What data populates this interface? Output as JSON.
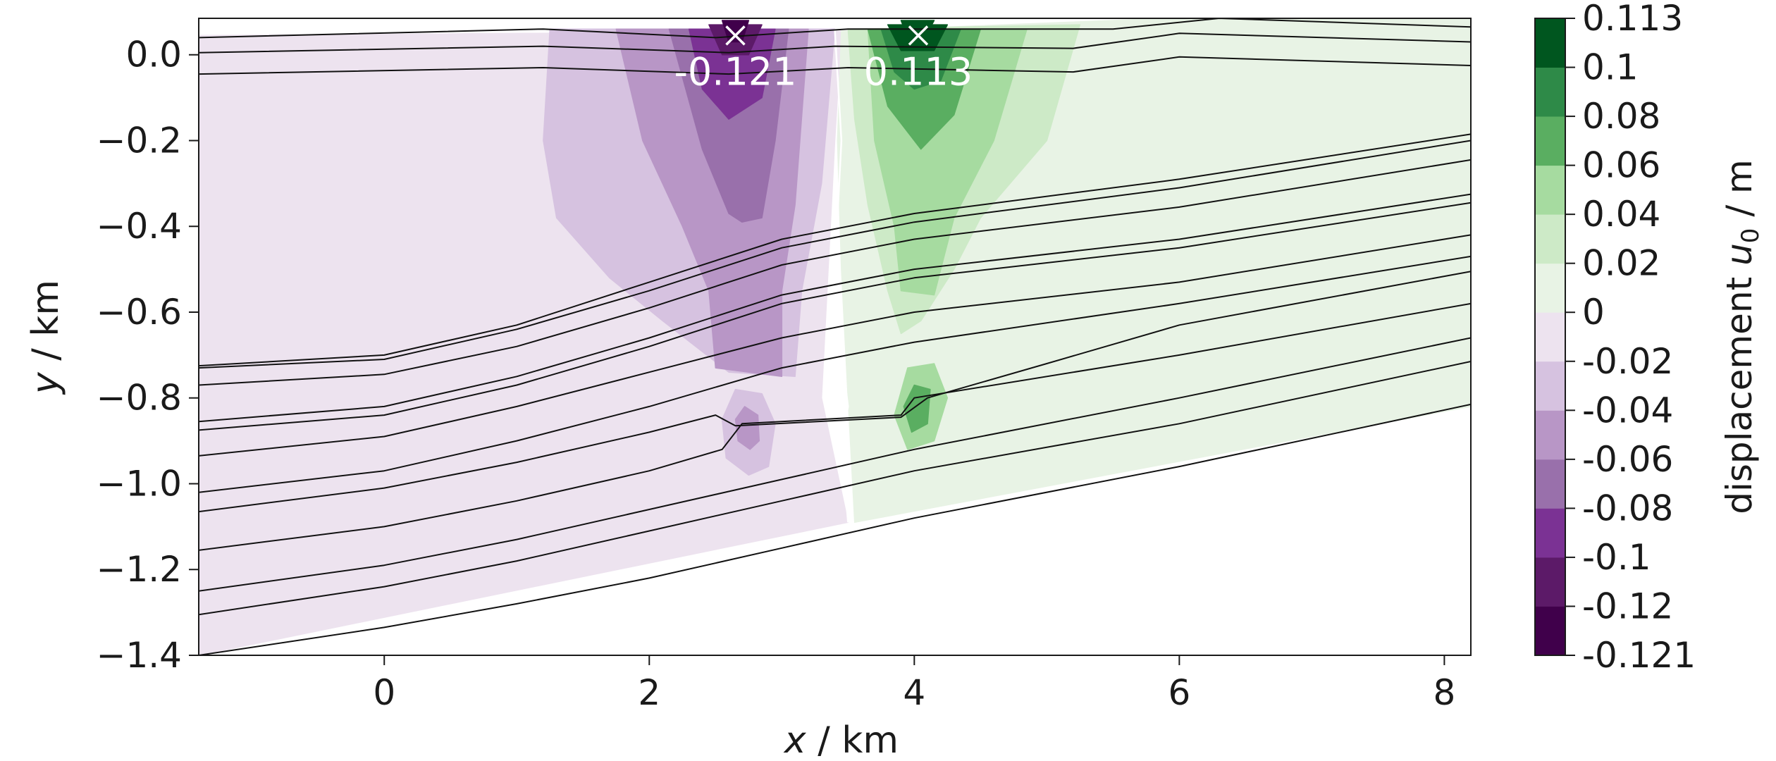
{
  "chart_data": {
    "type": "contourf",
    "xlabel_var": "x",
    "xlabel_unit": " / km",
    "ylabel_var": "y",
    "ylabel_unit": " / km",
    "xlim": [
      -1.4,
      8.2
    ],
    "ylim": [
      -1.4,
      0.085
    ],
    "x_ticks": [
      0,
      2,
      4,
      6,
      8
    ],
    "x_tick_labels": [
      "0",
      "2",
      "4",
      "6",
      "8"
    ],
    "y_ticks": [
      0.0,
      -0.2,
      -0.4,
      -0.6,
      -0.8,
      -1.0,
      -1.2,
      -1.4
    ],
    "y_tick_labels": [
      "0.0",
      "−0.2",
      "−0.4",
      "−0.6",
      "−0.8",
      "−1.0",
      "−1.2",
      "−1.4"
    ],
    "colorbar": {
      "label_prefix": "displacement ",
      "label_var": "u",
      "label_sub": "0",
      "label_suffix": " / m",
      "levels": [
        -0.121,
        -0.12,
        -0.1,
        -0.08,
        -0.06,
        -0.04,
        -0.02,
        0,
        0.02,
        0.04,
        0.06,
        0.08,
        0.1,
        0.113
      ],
      "tick_labels": [
        "-0.121",
        "-0.12",
        "-0.1",
        "-0.08",
        "-0.06",
        "-0.04",
        "-0.02",
        "0",
        "0.02",
        "0.04",
        "0.06",
        "0.08",
        "0.1",
        "0.113"
      ],
      "colors": [
        "#40004b",
        "#5c1a68",
        "#7b3294",
        "#9970ab",
        "#b896c6",
        "#d6c2e0",
        "#ede3ef",
        "#e8f3e5",
        "#cdeac7",
        "#a6dba0",
        "#5aae61",
        "#2e8a48",
        "#00561f"
      ]
    },
    "extrema": [
      {
        "x": 2.65,
        "y": 0.045,
        "value": -0.121,
        "label": "-0.121"
      },
      {
        "x": 4.03,
        "y": 0.045,
        "value": 0.113,
        "label": "0.113"
      }
    ],
    "regions": [
      {
        "level": -0.02,
        "polygon": [
          [
            -1.4,
            0.045
          ],
          [
            3.45,
            0.055
          ],
          [
            3.4,
            -0.2
          ],
          [
            3.35,
            -0.5
          ],
          [
            3.3,
            -0.8
          ],
          [
            3.5,
            -1.09
          ],
          [
            -1.4,
            -1.4
          ]
        ]
      },
      {
        "level": 0.0,
        "polygon": [
          [
            3.45,
            0.055
          ],
          [
            5.9,
            0.085
          ],
          [
            8.2,
            0.085
          ],
          [
            8.2,
            -0.82
          ],
          [
            3.55,
            -1.09
          ],
          [
            3.5,
            -0.8
          ],
          [
            3.45,
            -0.5
          ],
          [
            3.42,
            -0.2
          ]
        ]
      },
      {
        "level": -0.04,
        "polygon": [
          [
            1.25,
            0.06
          ],
          [
            3.4,
            0.06
          ],
          [
            3.3,
            -0.3
          ],
          [
            3.15,
            -0.55
          ],
          [
            3.1,
            -0.75
          ],
          [
            2.6,
            -0.74
          ],
          [
            2.1,
            -0.62
          ],
          [
            1.7,
            -0.52
          ],
          [
            1.3,
            -0.38
          ],
          [
            1.2,
            -0.2
          ]
        ]
      },
      {
        "level": -0.06,
        "polygon": [
          [
            1.75,
            0.06
          ],
          [
            3.2,
            0.06
          ],
          [
            3.1,
            -0.35
          ],
          [
            3.0,
            -0.55
          ],
          [
            3.0,
            -0.75
          ],
          [
            2.5,
            -0.73
          ],
          [
            2.45,
            -0.55
          ],
          [
            2.25,
            -0.4
          ],
          [
            1.95,
            -0.2
          ]
        ]
      },
      {
        "level": -0.08,
        "polygon": [
          [
            2.15,
            0.06
          ],
          [
            3.05,
            0.06
          ],
          [
            2.95,
            -0.2
          ],
          [
            2.85,
            -0.38
          ],
          [
            2.7,
            -0.39
          ],
          [
            2.6,
            -0.37
          ],
          [
            2.4,
            -0.22
          ]
        ]
      },
      {
        "level": -0.1,
        "polygon": [
          [
            2.3,
            0.06
          ],
          [
            2.95,
            0.06
          ],
          [
            2.85,
            -0.1
          ],
          [
            2.6,
            -0.15
          ],
          [
            2.4,
            -0.08
          ]
        ]
      },
      {
        "level": -0.12,
        "polygon": [
          [
            2.45,
            0.07
          ],
          [
            2.85,
            0.07
          ],
          [
            2.75,
            0.0
          ],
          [
            2.55,
            0.0
          ]
        ]
      },
      {
        "level": -0.121,
        "polygon": [
          [
            2.55,
            0.08
          ],
          [
            2.75,
            0.08
          ],
          [
            2.7,
            0.03
          ],
          [
            2.6,
            0.03
          ]
        ]
      },
      {
        "level": -0.04,
        "polygon": [
          [
            2.55,
            -0.85
          ],
          [
            2.65,
            -0.78
          ],
          [
            2.85,
            -0.79
          ],
          [
            2.95,
            -0.86
          ],
          [
            2.9,
            -0.96
          ],
          [
            2.75,
            -0.98
          ],
          [
            2.58,
            -0.94
          ]
        ]
      },
      {
        "level": -0.06,
        "polygon": [
          [
            2.65,
            -0.85
          ],
          [
            2.72,
            -0.82
          ],
          [
            2.82,
            -0.84
          ],
          [
            2.83,
            -0.9
          ],
          [
            2.76,
            -0.92
          ],
          [
            2.67,
            -0.9
          ]
        ]
      },
      {
        "level": 0.02,
        "polygon": [
          [
            3.5,
            0.06
          ],
          [
            5.25,
            0.07
          ],
          [
            5.0,
            -0.2
          ],
          [
            4.5,
            -0.38
          ],
          [
            4.3,
            -0.5
          ],
          [
            4.05,
            -0.62
          ],
          [
            3.9,
            -0.65
          ],
          [
            3.8,
            -0.55
          ],
          [
            3.65,
            -0.35
          ],
          [
            3.55,
            -0.15
          ]
        ]
      },
      {
        "level": 0.04,
        "polygon": [
          [
            3.65,
            0.06
          ],
          [
            4.85,
            0.06
          ],
          [
            4.6,
            -0.2
          ],
          [
            4.3,
            -0.38
          ],
          [
            4.15,
            -0.56
          ],
          [
            3.9,
            -0.55
          ],
          [
            3.85,
            -0.4
          ],
          [
            3.7,
            -0.2
          ]
        ]
      },
      {
        "level": 0.06,
        "polygon": [
          [
            3.65,
            0.06
          ],
          [
            4.5,
            0.06
          ],
          [
            4.3,
            -0.14
          ],
          [
            4.05,
            -0.22
          ],
          [
            3.8,
            -0.12
          ]
        ]
      },
      {
        "level": 0.08,
        "polygon": [
          [
            3.75,
            0.06
          ],
          [
            4.35,
            0.06
          ],
          [
            4.2,
            -0.06
          ],
          [
            4.0,
            -0.08
          ],
          [
            3.85,
            -0.04
          ]
        ]
      },
      {
        "level": 0.1,
        "polygon": [
          [
            3.8,
            0.07
          ],
          [
            4.25,
            0.07
          ],
          [
            4.15,
            0.01
          ],
          [
            3.9,
            0.01
          ]
        ]
      },
      {
        "level": 0.113,
        "polygon": [
          [
            3.9,
            0.08
          ],
          [
            4.15,
            0.08
          ],
          [
            4.08,
            0.04
          ],
          [
            3.95,
            0.04
          ]
        ]
      },
      {
        "level": 0.04,
        "polygon": [
          [
            3.85,
            -0.84
          ],
          [
            3.95,
            -0.73
          ],
          [
            4.15,
            -0.72
          ],
          [
            4.25,
            -0.8
          ],
          [
            4.15,
            -0.9
          ],
          [
            3.95,
            -0.92
          ]
        ]
      },
      {
        "level": 0.06,
        "polygon": [
          [
            3.92,
            -0.82
          ],
          [
            4.0,
            -0.77
          ],
          [
            4.12,
            -0.78
          ],
          [
            4.1,
            -0.86
          ],
          [
            3.98,
            -0.88
          ]
        ]
      }
    ],
    "zero_contour": [
      [
        3.4,
        0.06
      ],
      [
        3.45,
        -0.2
      ],
      [
        3.4,
        -0.5
      ],
      [
        3.45,
        -0.7
      ],
      [
        3.5,
        -0.82
      ],
      [
        3.45,
        -0.9
      ],
      [
        3.5,
        -1.09
      ]
    ],
    "layer_lines": [
      [
        [
          -1.4,
          0.04
        ],
        [
          1.2,
          0.06
        ],
        [
          2.5,
          0.04
        ],
        [
          3.5,
          0.06
        ],
        [
          5.5,
          0.06
        ],
        [
          6.3,
          0.085
        ],
        [
          8.2,
          0.065
        ]
      ],
      [
        [
          -1.4,
          0.005
        ],
        [
          1.2,
          0.02
        ],
        [
          2.6,
          0.005
        ],
        [
          3.4,
          0.02
        ],
        [
          5.2,
          0.015
        ],
        [
          6.0,
          0.05
        ],
        [
          8.2,
          0.03
        ]
      ],
      [
        [
          -1.4,
          -0.045
        ],
        [
          1.2,
          -0.03
        ],
        [
          2.6,
          -0.045
        ],
        [
          3.5,
          -0.03
        ],
        [
          5.2,
          -0.04
        ],
        [
          6.0,
          -0.005
        ],
        [
          8.2,
          -0.025
        ]
      ],
      [
        [
          -1.4,
          -0.725
        ],
        [
          0.0,
          -0.7
        ],
        [
          1.0,
          -0.63
        ],
        [
          2.0,
          -0.53
        ],
        [
          3.0,
          -0.43
        ],
        [
          4.0,
          -0.37
        ],
        [
          6.0,
          -0.29
        ],
        [
          8.2,
          -0.185
        ]
      ],
      [
        [
          -1.4,
          -0.73
        ],
        [
          0.0,
          -0.71
        ],
        [
          1.0,
          -0.64
        ],
        [
          2.0,
          -0.55
        ],
        [
          3.0,
          -0.45
        ],
        [
          4.0,
          -0.39
        ],
        [
          6.0,
          -0.31
        ],
        [
          8.2,
          -0.2
        ]
      ],
      [
        [
          -1.4,
          -0.77
        ],
        [
          0.0,
          -0.745
        ],
        [
          1.0,
          -0.68
        ],
        [
          2.0,
          -0.59
        ],
        [
          3.0,
          -0.49
        ],
        [
          4.0,
          -0.43
        ],
        [
          6.0,
          -0.355
        ],
        [
          8.2,
          -0.245
        ]
      ],
      [
        [
          -1.4,
          -0.855
        ],
        [
          0.0,
          -0.82
        ],
        [
          1.0,
          -0.75
        ],
        [
          2.0,
          -0.66
        ],
        [
          3.0,
          -0.56
        ],
        [
          4.0,
          -0.5
        ],
        [
          6.0,
          -0.43
        ],
        [
          8.2,
          -0.325
        ]
      ],
      [
        [
          -1.4,
          -0.875
        ],
        [
          0.0,
          -0.84
        ],
        [
          1.0,
          -0.77
        ],
        [
          2.0,
          -0.68
        ],
        [
          3.0,
          -0.58
        ],
        [
          4.0,
          -0.52
        ],
        [
          6.0,
          -0.45
        ],
        [
          8.2,
          -0.345
        ]
      ],
      [
        [
          -1.4,
          -0.935
        ],
        [
          0.0,
          -0.89
        ],
        [
          1.0,
          -0.82
        ],
        [
          2.0,
          -0.74
        ],
        [
          3.0,
          -0.66
        ],
        [
          4.0,
          -0.6
        ],
        [
          6.0,
          -0.53
        ],
        [
          8.2,
          -0.42
        ]
      ],
      [
        [
          -1.4,
          -1.02
        ],
        [
          0.0,
          -0.97
        ],
        [
          1.0,
          -0.9
        ],
        [
          2.0,
          -0.82
        ],
        [
          3.0,
          -0.73
        ],
        [
          4.0,
          -0.67
        ],
        [
          6.0,
          -0.58
        ],
        [
          8.2,
          -0.47
        ]
      ],
      [
        [
          -1.4,
          -1.065
        ],
        [
          0.0,
          -1.01
        ],
        [
          1.0,
          -0.95
        ],
        [
          2.0,
          -0.88
        ],
        [
          2.5,
          -0.84
        ],
        [
          2.65,
          -0.865
        ],
        [
          3.9,
          -0.845
        ],
        [
          4.1,
          -0.8
        ],
        [
          5.0,
          -0.72
        ],
        [
          6.0,
          -0.63
        ],
        [
          8.2,
          -0.505
        ]
      ],
      [
        [
          -1.4,
          -1.155
        ],
        [
          0.0,
          -1.1
        ],
        [
          1.0,
          -1.04
        ],
        [
          2.0,
          -0.97
        ],
        [
          2.55,
          -0.92
        ],
        [
          2.7,
          -0.86
        ],
        [
          3.9,
          -0.84
        ],
        [
          4.0,
          -0.8
        ],
        [
          6.0,
          -0.7
        ],
        [
          8.2,
          -0.58
        ]
      ],
      [
        [
          -1.4,
          -1.25
        ],
        [
          0.0,
          -1.19
        ],
        [
          1.0,
          -1.13
        ],
        [
          2.0,
          -1.06
        ],
        [
          3.0,
          -0.99
        ],
        [
          4.0,
          -0.92
        ],
        [
          6.0,
          -0.8
        ],
        [
          8.2,
          -0.66
        ]
      ],
      [
        [
          -1.4,
          -1.305
        ],
        [
          0.0,
          -1.24
        ],
        [
          1.0,
          -1.18
        ],
        [
          2.0,
          -1.11
        ],
        [
          3.0,
          -1.04
        ],
        [
          4.0,
          -0.97
        ],
        [
          6.0,
          -0.86
        ],
        [
          8.2,
          -0.715
        ]
      ],
      [
        [
          -1.4,
          -1.4
        ],
        [
          0.0,
          -1.335
        ],
        [
          1.0,
          -1.28
        ],
        [
          2.0,
          -1.22
        ],
        [
          3.0,
          -1.15
        ],
        [
          4.0,
          -1.08
        ],
        [
          6.0,
          -0.96
        ],
        [
          8.2,
          -0.815
        ]
      ]
    ]
  }
}
